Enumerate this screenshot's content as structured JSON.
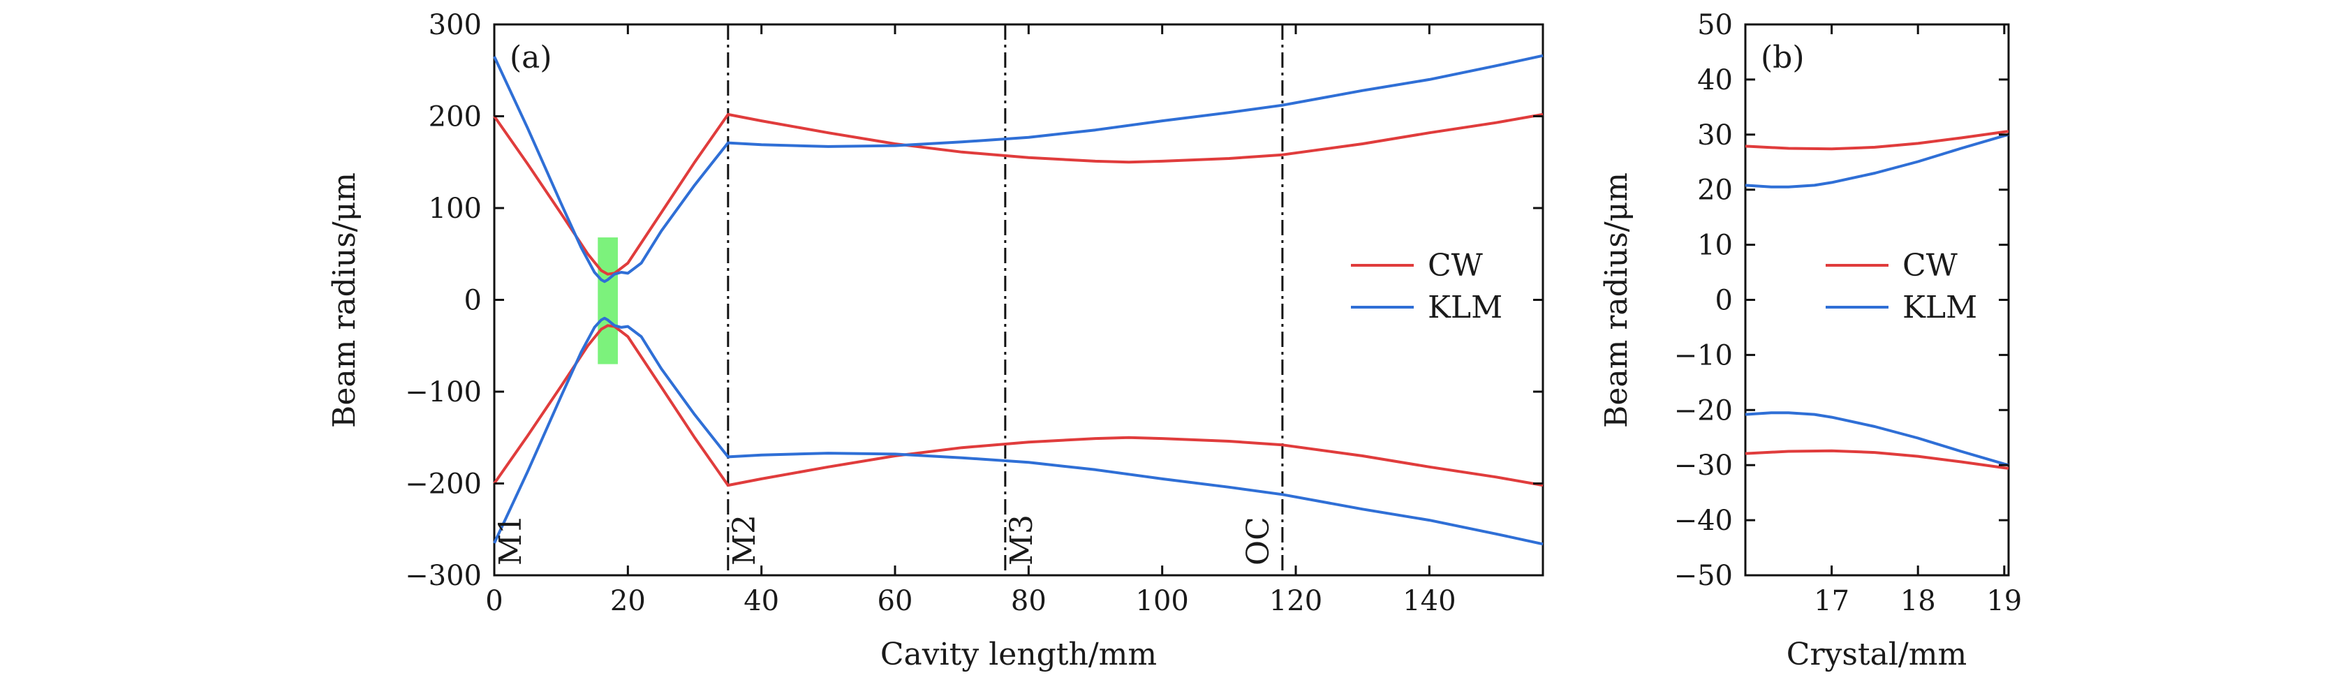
{
  "colors": {
    "cw": "#e03c3c",
    "klm": "#2f6fd6",
    "crystal": "#7cf27c"
  },
  "chart_data": [
    {
      "id": "a",
      "type": "line",
      "panel_label": "(a)",
      "xlabel": "Cavity length/mm",
      "ylabel": "Beam radius/μm",
      "xlim": [
        0,
        157
      ],
      "ylim": [
        -300,
        300
      ],
      "xticks": [
        0,
        20,
        40,
        60,
        80,
        100,
        120,
        140
      ],
      "yticks": [
        300,
        200,
        100,
        0,
        -100,
        -200,
        -300
      ],
      "ytick_labels": [
        "300",
        "200",
        "100",
        "0",
        "−100",
        "−200",
        "−300"
      ],
      "legend": {
        "position": "right",
        "entries": [
          "CW",
          "KLM"
        ]
      },
      "mirrors": [
        {
          "label": "M1",
          "x": 0,
          "line": false
        },
        {
          "label": "M2",
          "x": 35,
          "line": true
        },
        {
          "label": "M3",
          "x": 76.5,
          "line": true
        },
        {
          "label": "OC",
          "x": 118,
          "line": true
        }
      ],
      "crystal_region": {
        "x": [
          15.5,
          18.5
        ],
        "y": [
          -70,
          68
        ]
      },
      "series": [
        {
          "name": "CW",
          "x": [
            0,
            5,
            10,
            14,
            16,
            17,
            18,
            20,
            25,
            30,
            35,
            40,
            50,
            60,
            70,
            80,
            90,
            95,
            100,
            110,
            118,
            130,
            140,
            150,
            157
          ],
          "upper": [
            200,
            148,
            94,
            50,
            32,
            28,
            29,
            40,
            95,
            150,
            202,
            195,
            182,
            170,
            161,
            155,
            151,
            150,
            151,
            154,
            158,
            170,
            182,
            193,
            202
          ],
          "lower": [
            -200,
            -148,
            -94,
            -50,
            -32,
            -28,
            -29,
            -40,
            -95,
            -150,
            -202,
            -195,
            -182,
            -170,
            -161,
            -155,
            -151,
            -150,
            -151,
            -154,
            -158,
            -170,
            -182,
            -193,
            -202
          ]
        },
        {
          "name": "KLM",
          "x": [
            0,
            5,
            10,
            13,
            15,
            16,
            16.5,
            17,
            18,
            19,
            20,
            22,
            25,
            30,
            35,
            40,
            50,
            60,
            70,
            80,
            90,
            100,
            110,
            118,
            130,
            140,
            150,
            157
          ],
          "upper": [
            265,
            187,
            105,
            57,
            30,
            22,
            20,
            22,
            28,
            30,
            29,
            40,
            75,
            125,
            171,
            169,
            167,
            168,
            172,
            177,
            185,
            195,
            204,
            212,
            228,
            240,
            255,
            266
          ],
          "lower": [
            -265,
            -187,
            -105,
            -57,
            -30,
            -22,
            -20,
            -22,
            -28,
            -30,
            -29,
            -40,
            -75,
            -125,
            -171,
            -169,
            -167,
            -168,
            -172,
            -177,
            -185,
            -195,
            -204,
            -212,
            -228,
            -240,
            -255,
            -266
          ]
        }
      ]
    },
    {
      "id": "b",
      "type": "line",
      "panel_label": "(b)",
      "xlabel": "Crystal/mm",
      "ylabel": "Beam radius/μm",
      "xlim": [
        16,
        19.05
      ],
      "ylim": [
        -50,
        50
      ],
      "xticks": [
        17,
        18,
        19
      ],
      "yticks": [
        50,
        40,
        30,
        20,
        10,
        0,
        -10,
        -20,
        -30,
        -40,
        -50
      ],
      "ytick_labels": [
        "50",
        "40",
        "30",
        "20",
        "10",
        "0",
        "−10",
        "−20",
        "−30",
        "−40",
        "−50"
      ],
      "legend": {
        "position": "center-right",
        "entries": [
          "CW",
          "KLM"
        ]
      },
      "series": [
        {
          "name": "CW",
          "x": [
            16,
            16.5,
            17,
            17.5,
            18,
            18.5,
            19,
            19.05
          ],
          "upper": [
            27.9,
            27.5,
            27.4,
            27.7,
            28.4,
            29.4,
            30.5,
            30.6
          ],
          "lower": [
            -27.9,
            -27.5,
            -27.4,
            -27.7,
            -28.4,
            -29.4,
            -30.5,
            -30.6
          ]
        },
        {
          "name": "KLM",
          "x": [
            16,
            16.3,
            16.5,
            16.8,
            17,
            17.5,
            18,
            18.5,
            19,
            19.05
          ],
          "upper": [
            20.8,
            20.5,
            20.5,
            20.8,
            21.3,
            23.0,
            25.1,
            27.5,
            29.8,
            30.0
          ],
          "lower": [
            -20.8,
            -20.5,
            -20.5,
            -20.8,
            -21.3,
            -23.0,
            -25.1,
            -27.5,
            -29.8,
            -30.0
          ]
        }
      ]
    }
  ]
}
